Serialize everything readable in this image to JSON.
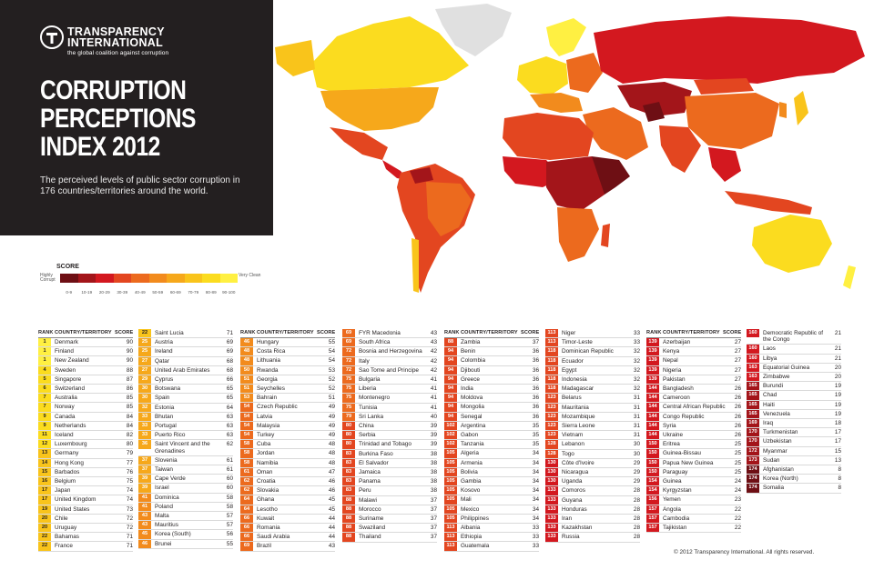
{
  "org": {
    "name_line1": "TRANSPARENCY",
    "name_line2": "INTERNATIONAL",
    "tagline": "the global coalition against corruption"
  },
  "title": {
    "line1": "CORRUPTION",
    "line2": "PERCEPTIONS",
    "line3": "INDEX 2012"
  },
  "subtitle": "The perceived levels of public sector corruption in 176 countries/territories around the world.",
  "legend": {
    "title": "SCORE",
    "low_label": "Highly Corrupt",
    "high_label": "Very Clean",
    "ranges": [
      "0-9",
      "10-19",
      "20-29",
      "30-39",
      "40-49",
      "50-59",
      "60-69",
      "70-79",
      "80-89",
      "90-100"
    ],
    "colors": [
      "#6e0f14",
      "#a3151a",
      "#d3181f",
      "#e34620",
      "#ec6a1e",
      "#f28b1d",
      "#f6a81b",
      "#f9c41b",
      "#fbdc1f",
      "#fff042"
    ]
  },
  "table_headers": {
    "rank": "RANK",
    "country": "COUNTRY/TERRITORY",
    "score": "SCORE"
  },
  "chart_data": {
    "type": "table",
    "columns": [
      "rank",
      "country",
      "score"
    ],
    "rows": [
      [
        1,
        "Denmark",
        90
      ],
      [
        1,
        "Finland",
        90
      ],
      [
        1,
        "New Zealand",
        90
      ],
      [
        4,
        "Sweden",
        88
      ],
      [
        5,
        "Singapore",
        87
      ],
      [
        6,
        "Switzerland",
        86
      ],
      [
        7,
        "Australia",
        85
      ],
      [
        7,
        "Norway",
        85
      ],
      [
        9,
        "Canada",
        84
      ],
      [
        9,
        "Netherlands",
        84
      ],
      [
        11,
        "Iceland",
        82
      ],
      [
        12,
        "Luxembourg",
        80
      ],
      [
        13,
        "Germany",
        79
      ],
      [
        14,
        "Hong Kong",
        77
      ],
      [
        15,
        "Barbados",
        76
      ],
      [
        16,
        "Belgium",
        75
      ],
      [
        17,
        "Japan",
        74
      ],
      [
        17,
        "United Kingdom",
        74
      ],
      [
        19,
        "United States",
        73
      ],
      [
        20,
        "Chile",
        72
      ],
      [
        20,
        "Uruguay",
        72
      ],
      [
        22,
        "Bahamas",
        71
      ],
      [
        22,
        "France",
        71
      ],
      [
        22,
        "Saint Lucia",
        71
      ],
      [
        25,
        "Austria",
        69
      ],
      [
        25,
        "Ireland",
        69
      ],
      [
        27,
        "Qatar",
        68
      ],
      [
        27,
        "United Arab Emirates",
        68
      ],
      [
        29,
        "Cyprus",
        66
      ],
      [
        30,
        "Botswana",
        65
      ],
      [
        30,
        "Spain",
        65
      ],
      [
        32,
        "Estonia",
        64
      ],
      [
        33,
        "Bhutan",
        63
      ],
      [
        33,
        "Portugal",
        63
      ],
      [
        33,
        "Puerto Rico",
        63
      ],
      [
        36,
        "Saint Vincent and the Grenadines",
        62
      ],
      [
        37,
        "Slovenia",
        61
      ],
      [
        37,
        "Taiwan",
        61
      ],
      [
        39,
        "Cape Verde",
        60
      ],
      [
        39,
        "Israel",
        60
      ],
      [
        41,
        "Dominica",
        58
      ],
      [
        41,
        "Poland",
        58
      ],
      [
        43,
        "Malta",
        57
      ],
      [
        43,
        "Mauritius",
        57
      ],
      [
        45,
        "Korea (South)",
        56
      ],
      [
        46,
        "Brunei",
        55
      ],
      [
        46,
        "Hungary",
        55
      ],
      [
        48,
        "Costa Rica",
        54
      ],
      [
        48,
        "Lithuania",
        54
      ],
      [
        50,
        "Rwanda",
        53
      ],
      [
        51,
        "Georgia",
        52
      ],
      [
        51,
        "Seychelles",
        52
      ],
      [
        53,
        "Bahrain",
        51
      ],
      [
        54,
        "Czech Republic",
        49
      ],
      [
        54,
        "Latvia",
        49
      ],
      [
        54,
        "Malaysia",
        49
      ],
      [
        54,
        "Turkey",
        49
      ],
      [
        58,
        "Cuba",
        48
      ],
      [
        58,
        "Jordan",
        48
      ],
      [
        58,
        "Namibia",
        48
      ],
      [
        61,
        "Oman",
        47
      ],
      [
        62,
        "Croatia",
        46
      ],
      [
        62,
        "Slovakia",
        46
      ],
      [
        64,
        "Ghana",
        45
      ],
      [
        64,
        "Lesotho",
        45
      ],
      [
        66,
        "Kuwait",
        44
      ],
      [
        66,
        "Romania",
        44
      ],
      [
        66,
        "Saudi Arabia",
        44
      ],
      [
        69,
        "Brazil",
        43
      ],
      [
        69,
        "FYR Macedonia",
        43
      ],
      [
        69,
        "South Africa",
        43
      ],
      [
        72,
        "Bosnia and Herzegovina",
        42
      ],
      [
        72,
        "Italy",
        42
      ],
      [
        72,
        "Sao Tome and Principe",
        42
      ],
      [
        75,
        "Bulgaria",
        41
      ],
      [
        75,
        "Liberia",
        41
      ],
      [
        75,
        "Montenegro",
        41
      ],
      [
        75,
        "Tunisia",
        41
      ],
      [
        79,
        "Sri Lanka",
        40
      ],
      [
        80,
        "China",
        39
      ],
      [
        80,
        "Serbia",
        39
      ],
      [
        80,
        "Trinidad and Tobago",
        39
      ],
      [
        83,
        "Burkina Faso",
        38
      ],
      [
        83,
        "El Salvador",
        38
      ],
      [
        83,
        "Jamaica",
        38
      ],
      [
        83,
        "Panama",
        38
      ],
      [
        83,
        "Peru",
        38
      ],
      [
        88,
        "Malawi",
        37
      ],
      [
        88,
        "Morocco",
        37
      ],
      [
        88,
        "Suriname",
        37
      ],
      [
        88,
        "Swaziland",
        37
      ],
      [
        88,
        "Thailand",
        37
      ],
      [
        88,
        "Zambia",
        37
      ],
      [
        94,
        "Benin",
        36
      ],
      [
        94,
        "Colombia",
        36
      ],
      [
        94,
        "Djibouti",
        36
      ],
      [
        94,
        "Greece",
        36
      ],
      [
        94,
        "India",
        36
      ],
      [
        94,
        "Moldova",
        36
      ],
      [
        94,
        "Mongolia",
        36
      ],
      [
        94,
        "Senegal",
        36
      ],
      [
        102,
        "Argentina",
        35
      ],
      [
        102,
        "Gabon",
        35
      ],
      [
        102,
        "Tanzania",
        35
      ],
      [
        105,
        "Algeria",
        34
      ],
      [
        105,
        "Armenia",
        34
      ],
      [
        105,
        "Bolivia",
        34
      ],
      [
        105,
        "Gambia",
        34
      ],
      [
        105,
        "Kosovo",
        34
      ],
      [
        105,
        "Mali",
        34
      ],
      [
        105,
        "Mexico",
        34
      ],
      [
        105,
        "Philippines",
        34
      ],
      [
        113,
        "Albania",
        33
      ],
      [
        113,
        "Ethiopia",
        33
      ],
      [
        113,
        "Guatemala",
        33
      ],
      [
        113,
        "Niger",
        33
      ],
      [
        113,
        "Timor-Leste",
        33
      ],
      [
        118,
        "Dominican Republic",
        32
      ],
      [
        118,
        "Ecuador",
        32
      ],
      [
        118,
        "Egypt",
        32
      ],
      [
        118,
        "Indonesia",
        32
      ],
      [
        118,
        "Madagascar",
        32
      ],
      [
        123,
        "Belarus",
        31
      ],
      [
        123,
        "Mauritania",
        31
      ],
      [
        123,
        "Mozambique",
        31
      ],
      [
        123,
        "Sierra Leone",
        31
      ],
      [
        123,
        "Vietnam",
        31
      ],
      [
        128,
        "Lebanon",
        30
      ],
      [
        128,
        "Togo",
        30
      ],
      [
        130,
        "Côte d'Ivoire",
        29
      ],
      [
        130,
        "Nicaragua",
        29
      ],
      [
        130,
        "Uganda",
        29
      ],
      [
        133,
        "Comoros",
        28
      ],
      [
        133,
        "Guyana",
        28
      ],
      [
        133,
        "Honduras",
        28
      ],
      [
        133,
        "Iran",
        28
      ],
      [
        133,
        "Kazakhstan",
        28
      ],
      [
        133,
        "Russia",
        28
      ],
      [
        139,
        "Azerbaijan",
        27
      ],
      [
        139,
        "Kenya",
        27
      ],
      [
        139,
        "Nepal",
        27
      ],
      [
        139,
        "Nigeria",
        27
      ],
      [
        139,
        "Pakistan",
        27
      ],
      [
        144,
        "Bangladesh",
        26
      ],
      [
        144,
        "Cameroon",
        26
      ],
      [
        144,
        "Central African Republic",
        26
      ],
      [
        144,
        "Congo Republic",
        26
      ],
      [
        144,
        "Syria",
        26
      ],
      [
        144,
        "Ukraine",
        26
      ],
      [
        150,
        "Eritrea",
        25
      ],
      [
        150,
        "Guinea-Bissau",
        25
      ],
      [
        150,
        "Papua New Guinea",
        25
      ],
      [
        150,
        "Paraguay",
        25
      ],
      [
        154,
        "Guinea",
        24
      ],
      [
        154,
        "Kyrgyzstan",
        24
      ],
      [
        156,
        "Yemen",
        23
      ],
      [
        157,
        "Angola",
        22
      ],
      [
        157,
        "Cambodia",
        22
      ],
      [
        157,
        "Tajikistan",
        22
      ],
      [
        160,
        "Democratic Republic of the Congo",
        21
      ],
      [
        160,
        "Laos",
        21
      ],
      [
        160,
        "Libya",
        21
      ],
      [
        163,
        "Equatorial Guinea",
        20
      ],
      [
        163,
        "Zimbabwe",
        20
      ],
      [
        165,
        "Burundi",
        19
      ],
      [
        165,
        "Chad",
        19
      ],
      [
        165,
        "Haiti",
        19
      ],
      [
        165,
        "Venezuela",
        19
      ],
      [
        169,
        "Iraq",
        18
      ],
      [
        170,
        "Turkmenistan",
        17
      ],
      [
        170,
        "Uzbekistan",
        17
      ],
      [
        172,
        "Myanmar",
        15
      ],
      [
        173,
        "Sudan",
        13
      ],
      [
        174,
        "Afghanistan",
        8
      ],
      [
        174,
        "Korea (North)",
        8
      ],
      [
        174,
        "Somalia",
        8
      ]
    ]
  },
  "copyright": "© 2012 Transparency International. All rights reserved."
}
